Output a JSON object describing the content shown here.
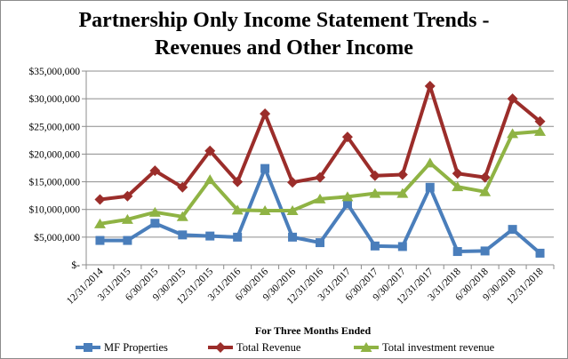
{
  "chart_data": {
    "type": "line",
    "title": "Partnership Only Income Statement Trends - Revenues and Other Income",
    "title_lines": [
      "Partnership Only Income Statement Trends -",
      "Revenues and Other Income"
    ],
    "xlabel": "For Three Months  Ended",
    "ylabel": "",
    "categories": [
      "12/31/2014",
      "3/31/2015",
      "6/30/2015",
      "9/30/2015",
      "12/31/2015",
      "3/31/2016",
      "6/30/2016",
      "9/30/2016",
      "12/31/2016",
      "3/31/2017",
      "6/30/2017",
      "9/30/2017",
      "12/31/2017",
      "3/31/2018",
      "6/30/2018",
      "9/30/2018",
      "12/31/2018"
    ],
    "ylim": [
      0,
      35000000
    ],
    "yticks": [
      0,
      5000000,
      10000000,
      15000000,
      20000000,
      25000000,
      30000000,
      35000000
    ],
    "ytick_labels": [
      "$-",
      "$5,000,000",
      "$10,000,000",
      "$15,000,000",
      "$20,000,000",
      "$25,000,000",
      "$30,000,000",
      "$35,000,000"
    ],
    "grid": "horizontal",
    "legend_position": "bottom",
    "series": [
      {
        "name": "MF Properties",
        "color": "#4a7ebb",
        "marker": "square",
        "values": [
          4400000,
          4400000,
          7500000,
          5400000,
          5200000,
          5000000,
          17400000,
          5000000,
          4000000,
          11000000,
          3400000,
          3300000,
          14000000,
          2400000,
          2500000,
          6400000,
          2100000
        ]
      },
      {
        "name": "Total Revenue",
        "color": "#9b2d2a",
        "marker": "diamond",
        "values": [
          11800000,
          12400000,
          17000000,
          14000000,
          20600000,
          15000000,
          27300000,
          14900000,
          15800000,
          23100000,
          16100000,
          16300000,
          32300000,
          16500000,
          15800000,
          30000000,
          25900000
        ]
      },
      {
        "name": "Total investment revenue",
        "color": "#8fb344",
        "marker": "triangle",
        "values": [
          7400000,
          8200000,
          9500000,
          8700000,
          15400000,
          9900000,
          9800000,
          9800000,
          11900000,
          12300000,
          12900000,
          12900000,
          18400000,
          14100000,
          13200000,
          23700000,
          24100000
        ]
      }
    ]
  }
}
